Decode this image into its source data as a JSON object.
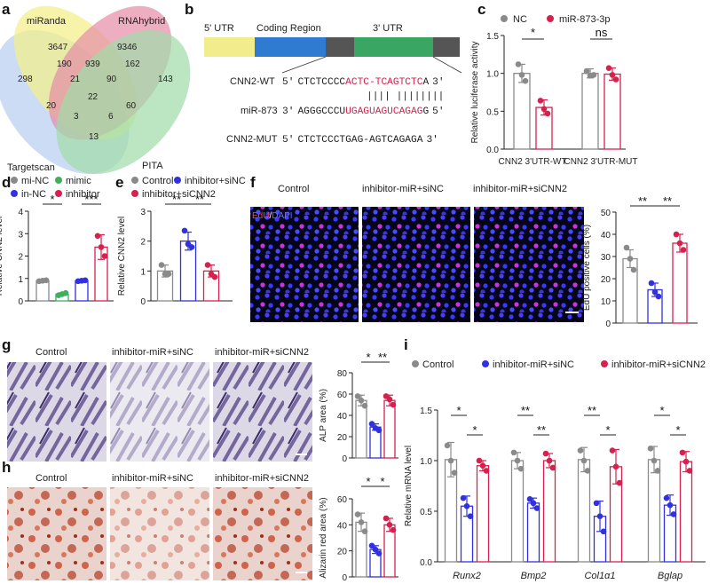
{
  "colors": {
    "grey": "#8a8a8a",
    "green": "#3fae5d",
    "blue": "#3131e0",
    "pink": "#d6204e"
  },
  "panels": {
    "a": "a",
    "b": "b",
    "c": "c",
    "d": "d",
    "e": "e",
    "f": "f",
    "g": "g",
    "h": "h",
    "i": "i"
  },
  "venn": {
    "labels": {
      "miRanda": "miRanda",
      "RNAhybrid": "RNAhybrid",
      "Targetscan": "Targetscan",
      "PITA": "PITA"
    },
    "counts": [
      "3647",
      "9346",
      "190",
      "939",
      "162",
      "298",
      "21",
      "90",
      "143",
      "22",
      "20",
      "60",
      "3",
      "6",
      "13"
    ]
  },
  "schematic": {
    "regions": {
      "utr5": "5' UTR",
      "coding": "Coding Region",
      "utr3": "3' UTR"
    },
    "rows": [
      {
        "label": "CNN2-WT",
        "p5": "5'",
        "seq_a": "CTCTCCCC",
        "seq_b": "ACTC-TCAGTCTC",
        "seq_c": "A",
        "p3": "3'"
      },
      {
        "label": "miR-873",
        "p5": "3'",
        "seq_a": "AGGGCCCU",
        "seq_b": "UGAGUAGUCAGAG",
        "seq_c": "G",
        "p3": "5'"
      },
      {
        "label": "CNN2-MUT",
        "p5": "5'",
        "seq_a": "CTCTCCCTGAG-AGTCAGAGA",
        "seq_b": "",
        "seq_c": "",
        "p3": "3'"
      }
    ],
    "pairing": "|||| ||||||||"
  },
  "chart_data": [
    {
      "panel": "c",
      "type": "bar",
      "ylabel": "Relative luciferase activity",
      "ylim": [
        0,
        1.5
      ],
      "yticks": [
        "0.0",
        "0.5",
        "1.0",
        "1.5"
      ],
      "categories": [
        "CNN2 3'UTR-WT",
        "CNN2 3'UTR-MUT"
      ],
      "legend": [
        "NC",
        "miR-873-3p"
      ],
      "series": [
        {
          "name": "NC",
          "color": "grey",
          "values": [
            1.0,
            1.0
          ],
          "sd": [
            0.12,
            0.06
          ],
          "points": [
            [
              1.12,
              0.98,
              0.9
            ],
            [
              1.03,
              0.97,
              0.98
            ]
          ]
        },
        {
          "name": "miR-873-3p",
          "color": "pink",
          "values": [
            0.55,
            0.99
          ],
          "sd": [
            0.1,
            0.08
          ],
          "points": [
            [
              0.64,
              0.53,
              0.47
            ],
            [
              1.07,
              0.98,
              0.92
            ]
          ]
        }
      ],
      "sig": [
        "*",
        "ns"
      ]
    },
    {
      "panel": "d",
      "type": "bar",
      "ylabel": "Relative CNN2 level",
      "ylim": [
        0,
        4
      ],
      "yticks": [
        "0",
        "1",
        "2",
        "3",
        "4"
      ],
      "categories": [
        "mi-NC",
        "mimic",
        "in-NC",
        "inhibitor"
      ],
      "legend": [
        "mi-NC",
        "mimic",
        "in-NC",
        "inhibitor"
      ],
      "series": [
        {
          "name": "CNN2",
          "colors": [
            "grey",
            "green",
            "blue",
            "pink"
          ],
          "values": [
            0.9,
            0.3,
            0.9,
            2.4
          ],
          "sd": [
            0.06,
            0.06,
            0.06,
            0.55
          ],
          "points": [
            [
              0.88,
              0.9,
              0.92
            ],
            [
              0.25,
              0.3,
              0.35
            ],
            [
              0.88,
              0.9,
              0.92
            ],
            [
              2.9,
              2.4,
              2.0
            ]
          ]
        }
      ],
      "sig": [
        "*",
        "***"
      ]
    },
    {
      "panel": "e",
      "type": "bar",
      "ylabel": "Relative CNN2 level",
      "ylim": [
        0,
        3
      ],
      "yticks": [
        "0",
        "1",
        "2",
        "3"
      ],
      "categories": [
        "Control",
        "inhibitor+siNC",
        "inhibitor+siCNN2"
      ],
      "legend": [
        "Control",
        "inhibitor+siNC",
        "inhibitor+siCNN2"
      ],
      "series": [
        {
          "name": "CNN2",
          "colors": [
            "grey",
            "blue",
            "pink"
          ],
          "values": [
            1.0,
            2.0,
            1.0
          ],
          "sd": [
            0.2,
            0.3,
            0.2
          ],
          "points": [
            [
              1.2,
              0.9,
              0.9
            ],
            [
              2.35,
              1.9,
              1.8
            ],
            [
              1.2,
              0.9,
              0.8
            ]
          ]
        }
      ],
      "sig": [
        "**",
        "**"
      ]
    },
    {
      "panel": "f",
      "type": "bar",
      "ylabel": "EdU positive cells (%)",
      "ylim": [
        0,
        50
      ],
      "yticks": [
        "0",
        "10",
        "20",
        "30",
        "40",
        "50"
      ],
      "categories": [
        "Control",
        "inhibitor-miR+siNC",
        "inhibitor-miR+siCNN2"
      ],
      "series": [
        {
          "name": "EdU",
          "colors": [
            "grey",
            "blue",
            "pink"
          ],
          "values": [
            29,
            15,
            36
          ],
          "sd": [
            4,
            3,
            4
          ],
          "points": [
            [
              34,
              29,
              24
            ],
            [
              18,
              14,
              12
            ],
            [
              40,
              36,
              33
            ]
          ]
        }
      ],
      "sig": [
        "**",
        "**"
      ]
    },
    {
      "panel": "g",
      "type": "bar",
      "ylabel": "ALP area (%)",
      "ylim": [
        0,
        80
      ],
      "yticks": [
        "0",
        "20",
        "40",
        "60",
        "80"
      ],
      "categories": [
        "Control",
        "inhibitor-miR+siNC",
        "inhibitor-miR+siCNN2"
      ],
      "series": [
        {
          "name": "ALP",
          "colors": [
            "grey",
            "blue",
            "pink"
          ],
          "values": [
            54,
            29,
            54
          ],
          "sd": [
            5,
            3,
            5
          ],
          "points": [
            [
              58,
              54,
              49
            ],
            [
              32,
              28,
              26
            ],
            [
              58,
              55,
              50
            ]
          ]
        }
      ],
      "sig": [
        "*",
        "**"
      ]
    },
    {
      "panel": "h",
      "type": "bar",
      "ylabel": "Alizarin red area (%)",
      "ylim": [
        0,
        60
      ],
      "yticks": [
        "0",
        "20",
        "40",
        "60"
      ],
      "categories": [
        "Control",
        "inhibitor-miR+siNC",
        "inhibitor-miR+siCNN2"
      ],
      "series": [
        {
          "name": "AR",
          "colors": [
            "grey",
            "blue",
            "pink"
          ],
          "values": [
            42,
            21,
            40
          ],
          "sd": [
            7,
            3,
            5
          ],
          "points": [
            [
              48,
              42,
              35
            ],
            [
              24,
              21,
              18
            ],
            [
              45,
              40,
              36
            ]
          ]
        }
      ],
      "sig": [
        "*",
        "*"
      ]
    },
    {
      "panel": "i",
      "type": "bar",
      "ylabel": "Relative mRNA level",
      "ylim": [
        0,
        1.5
      ],
      "yticks": [
        "0.0",
        "0.5",
        "1.0",
        "1.5"
      ],
      "categories": [
        "Runx2",
        "Bmp2",
        "Col1α1",
        "Bglap"
      ],
      "legend": [
        "Control",
        "inhibitor-miR+siNC",
        "inhibitor-miR+siCNN2"
      ],
      "series": [
        {
          "name": "Control",
          "color": "grey",
          "values": [
            1.01,
            1.0,
            1.01,
            1.01
          ],
          "sd": [
            0.17,
            0.08,
            0.12,
            0.13
          ],
          "points": [
            [
              1.15,
              1.0,
              0.88
            ],
            [
              1.08,
              1.0,
              0.92
            ],
            [
              1.1,
              1.0,
              0.9
            ],
            [
              1.12,
              1.0,
              0.9
            ]
          ]
        },
        {
          "name": "inhibitor-miR+siNC",
          "color": "blue",
          "values": [
            0.55,
            0.58,
            0.45,
            0.56
          ],
          "sd": [
            0.1,
            0.05,
            0.15,
            0.1
          ],
          "points": [
            [
              0.63,
              0.55,
              0.45
            ],
            [
              0.62,
              0.58,
              0.53
            ],
            [
              0.58,
              0.45,
              0.3
            ],
            [
              0.63,
              0.56,
              0.47
            ]
          ]
        },
        {
          "name": "inhibitor-miR+siCNN2",
          "color": "pink",
          "values": [
            0.95,
            1.0,
            0.94,
            0.99
          ],
          "sd": [
            0.05,
            0.07,
            0.17,
            0.1
          ],
          "points": [
            [
              1.0,
              0.95,
              0.9
            ],
            [
              1.07,
              1.0,
              0.93
            ],
            [
              1.1,
              0.94,
              0.78
            ],
            [
              1.08,
              0.99,
              0.9
            ]
          ]
        }
      ],
      "sig_pairs": [
        [
          "*",
          "*"
        ],
        [
          "**",
          "**"
        ],
        [
          "**",
          "*"
        ],
        [
          "*",
          "*"
        ]
      ]
    }
  ],
  "images": {
    "f": {
      "labels": [
        "Control",
        "inhibitor-miR+siNC",
        "inhibitor-miR+siCNN2"
      ],
      "stain_a": "EdU",
      "stain_sep": "/",
      "stain_b": "DAPI"
    },
    "g": {
      "labels": [
        "Control",
        "inhibitor-miR+siNC",
        "inhibitor-miR+siCNN2"
      ]
    },
    "h": {
      "labels": [
        "Control",
        "inhibitor-miR+siNC",
        "inhibitor-miR+siCNN2"
      ]
    }
  }
}
